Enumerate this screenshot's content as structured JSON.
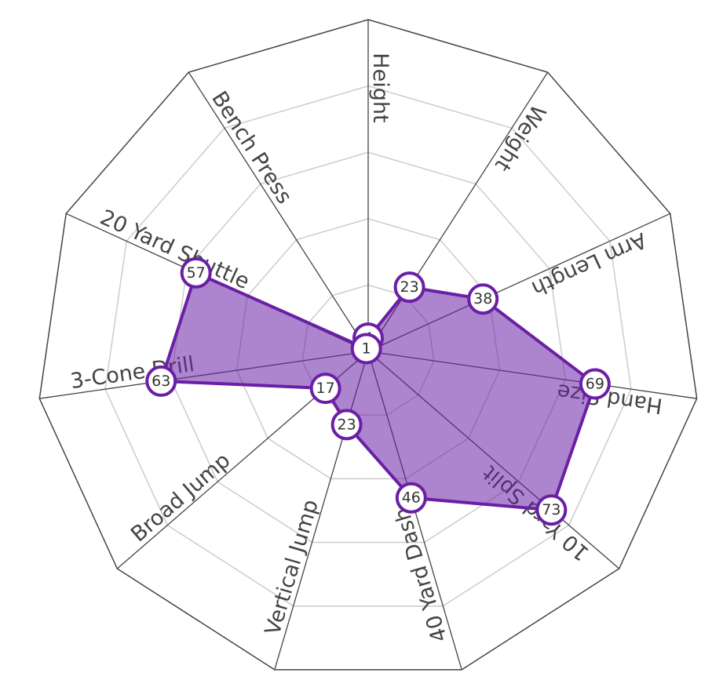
{
  "chart_data": {
    "type": "radar",
    "categories": [
      "Height",
      "Weight",
      "Arm Length",
      "Hand Size",
      "10 Yard Split",
      "40 Yard Dash",
      "Vertical Jump",
      "Broad Jump",
      "3-Cone Drill",
      "20 Yard Shuttle",
      "Bench Press"
    ],
    "values": [
      4,
      23,
      38,
      69,
      73,
      46,
      23,
      17,
      63,
      57,
      1
    ],
    "color": "#6a1fa5",
    "ylim": [
      0,
      100
    ],
    "yticks": [
      20,
      40,
      60,
      80,
      100
    ],
    "grid": true
  }
}
